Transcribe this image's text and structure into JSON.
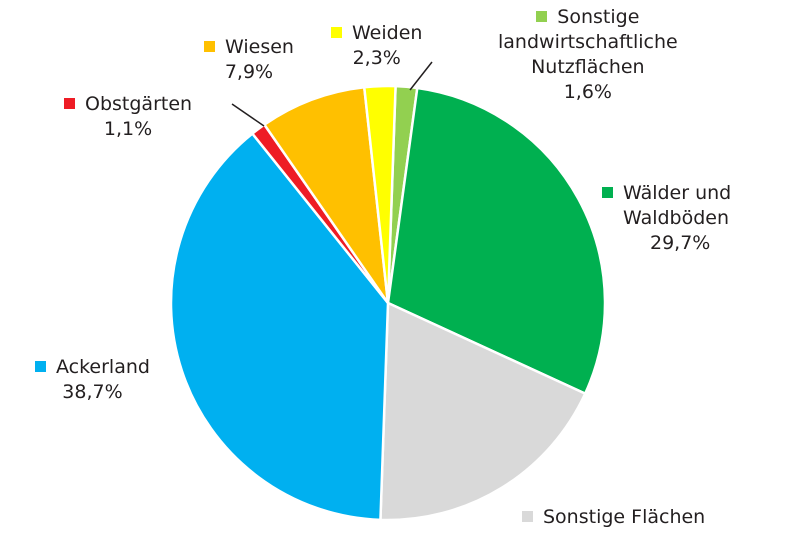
{
  "chart_data": {
    "type": "pie",
    "title": "",
    "slices": [
      {
        "name": "Sonstige landwirtschaftliche Nutzflächen",
        "label_lines": [
          "Sonstige",
          "landwirtschaftliche",
          "Nutzflächen"
        ],
        "value": 1.6,
        "pct_label": "1,6%",
        "color": "#92d050"
      },
      {
        "name": "Wälder und Waldböden",
        "label_lines": [
          "Wälder und",
          "Waldböden"
        ],
        "value": 29.7,
        "pct_label": "29,7%",
        "color": "#00b050"
      },
      {
        "name": "Sonstige Flächen",
        "label_lines": [
          "Sonstige Flächen"
        ],
        "value": 18.7,
        "pct_label": "",
        "color": "#d9d9d9"
      },
      {
        "name": "Ackerland",
        "label_lines": [
          "Ackerland"
        ],
        "value": 38.7,
        "pct_label": "38,7%",
        "color": "#00b0f0"
      },
      {
        "name": "Obstgärten",
        "label_lines": [
          "Obstgärten"
        ],
        "value": 1.1,
        "pct_label": "1,1%",
        "color": "#ee1c25"
      },
      {
        "name": "Wiesen",
        "label_lines": [
          "Wiesen"
        ],
        "value": 7.9,
        "pct_label": "7,9%",
        "color": "#ffc000"
      },
      {
        "name": "Weiden",
        "label_lines": [
          "Weiden"
        ],
        "value": 2.3,
        "pct_label": "2,3%",
        "color": "#ffff00"
      }
    ],
    "legend": "labels-around-pie"
  }
}
